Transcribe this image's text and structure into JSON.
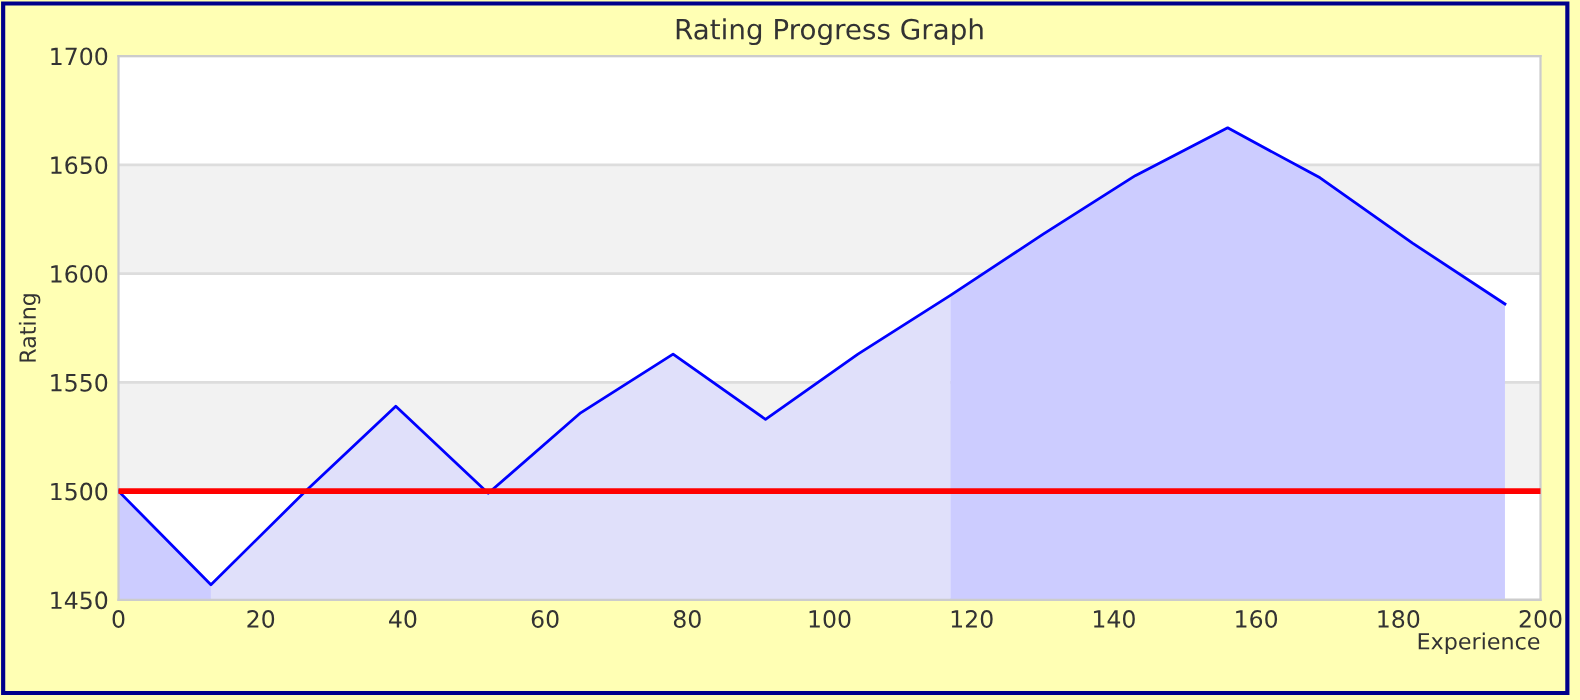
{
  "chart_data": {
    "type": "area",
    "title": "Rating Progress Graph",
    "xlabel": "Experience",
    "ylabel": "Rating",
    "series": [
      {
        "color": "#ccccff",
        "x": [
          0,
          13
        ],
        "values": [
          1500,
          1457
        ]
      },
      {
        "color": "#e0e0fa",
        "x": [
          13,
          26,
          39,
          52,
          65,
          78,
          91,
          104,
          117
        ],
        "values": [
          1457,
          1499,
          1539,
          1499,
          1536,
          1563,
          1533,
          1563,
          1590
        ]
      },
      {
        "color": "#ccccff",
        "x": [
          117,
          130,
          143,
          156,
          169,
          182,
          195
        ],
        "values": [
          1590,
          1618,
          1645,
          1667,
          1644,
          1614,
          1586
        ]
      },
      {
        "type": "line",
        "color": "#0000ff",
        "x": [
          0,
          13,
          26,
          39,
          52,
          65,
          78,
          91,
          104,
          117,
          130,
          143,
          156,
          169,
          182,
          195
        ],
        "values": [
          1500,
          1457,
          1499,
          1539,
          1499,
          1536,
          1563,
          1533,
          1563,
          1590,
          1618,
          1645,
          1667,
          1644,
          1614,
          1586
        ]
      }
    ],
    "xlim": [
      0,
      200
    ],
    "ylim": [
      1450,
      1700
    ],
    "xticks": [
      0,
      20,
      40,
      60,
      80,
      100,
      120,
      140,
      160,
      180,
      200
    ],
    "yticks": [
      1450,
      1500,
      1550,
      1600,
      1650,
      1700
    ],
    "ref_lines": [
      {
        "axis": "y",
        "value": 1500,
        "label": null,
        "color": "#ff0000"
      }
    ],
    "bands": [
      {
        "axis": "y",
        "from": 1500,
        "to": 1550,
        "label": null,
        "color": "#f2f2f2"
      },
      {
        "axis": "y",
        "from": 1600,
        "to": 1650,
        "label": null,
        "color": "#f2f2f2"
      }
    ],
    "grid": "y",
    "legend": false
  }
}
